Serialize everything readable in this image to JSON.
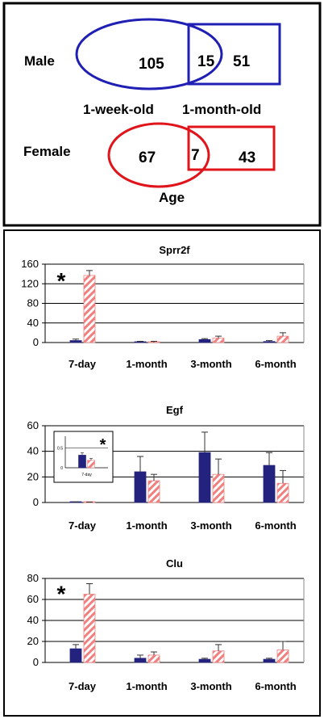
{
  "venn": {
    "row_labels": {
      "male": "Male",
      "female": "Female"
    },
    "group_labels": {
      "week": "1-week-old",
      "month": "1-month-old"
    },
    "axis_label": "Age",
    "male": {
      "week_only": "105",
      "overlap": "15",
      "month_only": "51",
      "color": "#1f1fb4"
    },
    "female": {
      "week_only": "67",
      "overlap": "7",
      "month_only": "43",
      "color": "#e0151b"
    }
  },
  "colors": {
    "male_bar": "#23237f",
    "female_hatch_stripe": "#f08080",
    "female_hatch_bg": "#ffffff"
  },
  "significance_marker": "*",
  "chart_data": [
    {
      "type": "bar",
      "title": "Sprr2f",
      "categories": [
        "7-day",
        "1-month",
        "3-month",
        "6-month"
      ],
      "ylim": [
        0,
        160
      ],
      "yticks": [
        0,
        40,
        80,
        120,
        160
      ],
      "grid": true,
      "series": [
        {
          "values": [
            4,
            0.5,
            6,
            2
          ],
          "errors": [
            3,
            2,
            2,
            2
          ]
        },
        {
          "values": [
            137,
            0.5,
            9,
            13
          ],
          "errors": [
            10,
            2,
            4,
            7
          ]
        }
      ],
      "significant": [
        "7-day"
      ]
    },
    {
      "type": "bar",
      "title": "Egf",
      "categories": [
        "7-day",
        "1-month",
        "3-month",
        "6-month"
      ],
      "ylim": [
        0,
        60
      ],
      "yticks": [
        0,
        20,
        40,
        60
      ],
      "grid": true,
      "series": [
        {
          "values": [
            0.3,
            24,
            39,
            29
          ],
          "errors": [
            0.1,
            12,
            16,
            10
          ]
        },
        {
          "values": [
            0.2,
            17,
            22,
            15
          ],
          "errors": [
            0.1,
            5,
            12,
            10
          ]
        }
      ],
      "inset": {
        "category": "7-day",
        "ytick_labels": [
          "0",
          "0.5"
        ],
        "ylim": [
          0,
          0.8
        ],
        "values": [
          0.32,
          0.19
        ],
        "errors": [
          0.06,
          0.05
        ]
      }
    },
    {
      "type": "bar",
      "title": "Clu",
      "categories": [
        "7-day",
        "1-month",
        "3-month",
        "6-month"
      ],
      "ylim": [
        0,
        80
      ],
      "yticks": [
        0,
        20,
        40,
        60,
        80
      ],
      "grid": true,
      "series": [
        {
          "values": [
            13,
            4,
            3,
            3
          ],
          "errors": [
            4,
            3,
            1,
            1
          ]
        },
        {
          "values": [
            65,
            7,
            11,
            12
          ],
          "errors": [
            10,
            3,
            6,
            8
          ]
        }
      ],
      "significant": [
        "7-day"
      ]
    }
  ]
}
